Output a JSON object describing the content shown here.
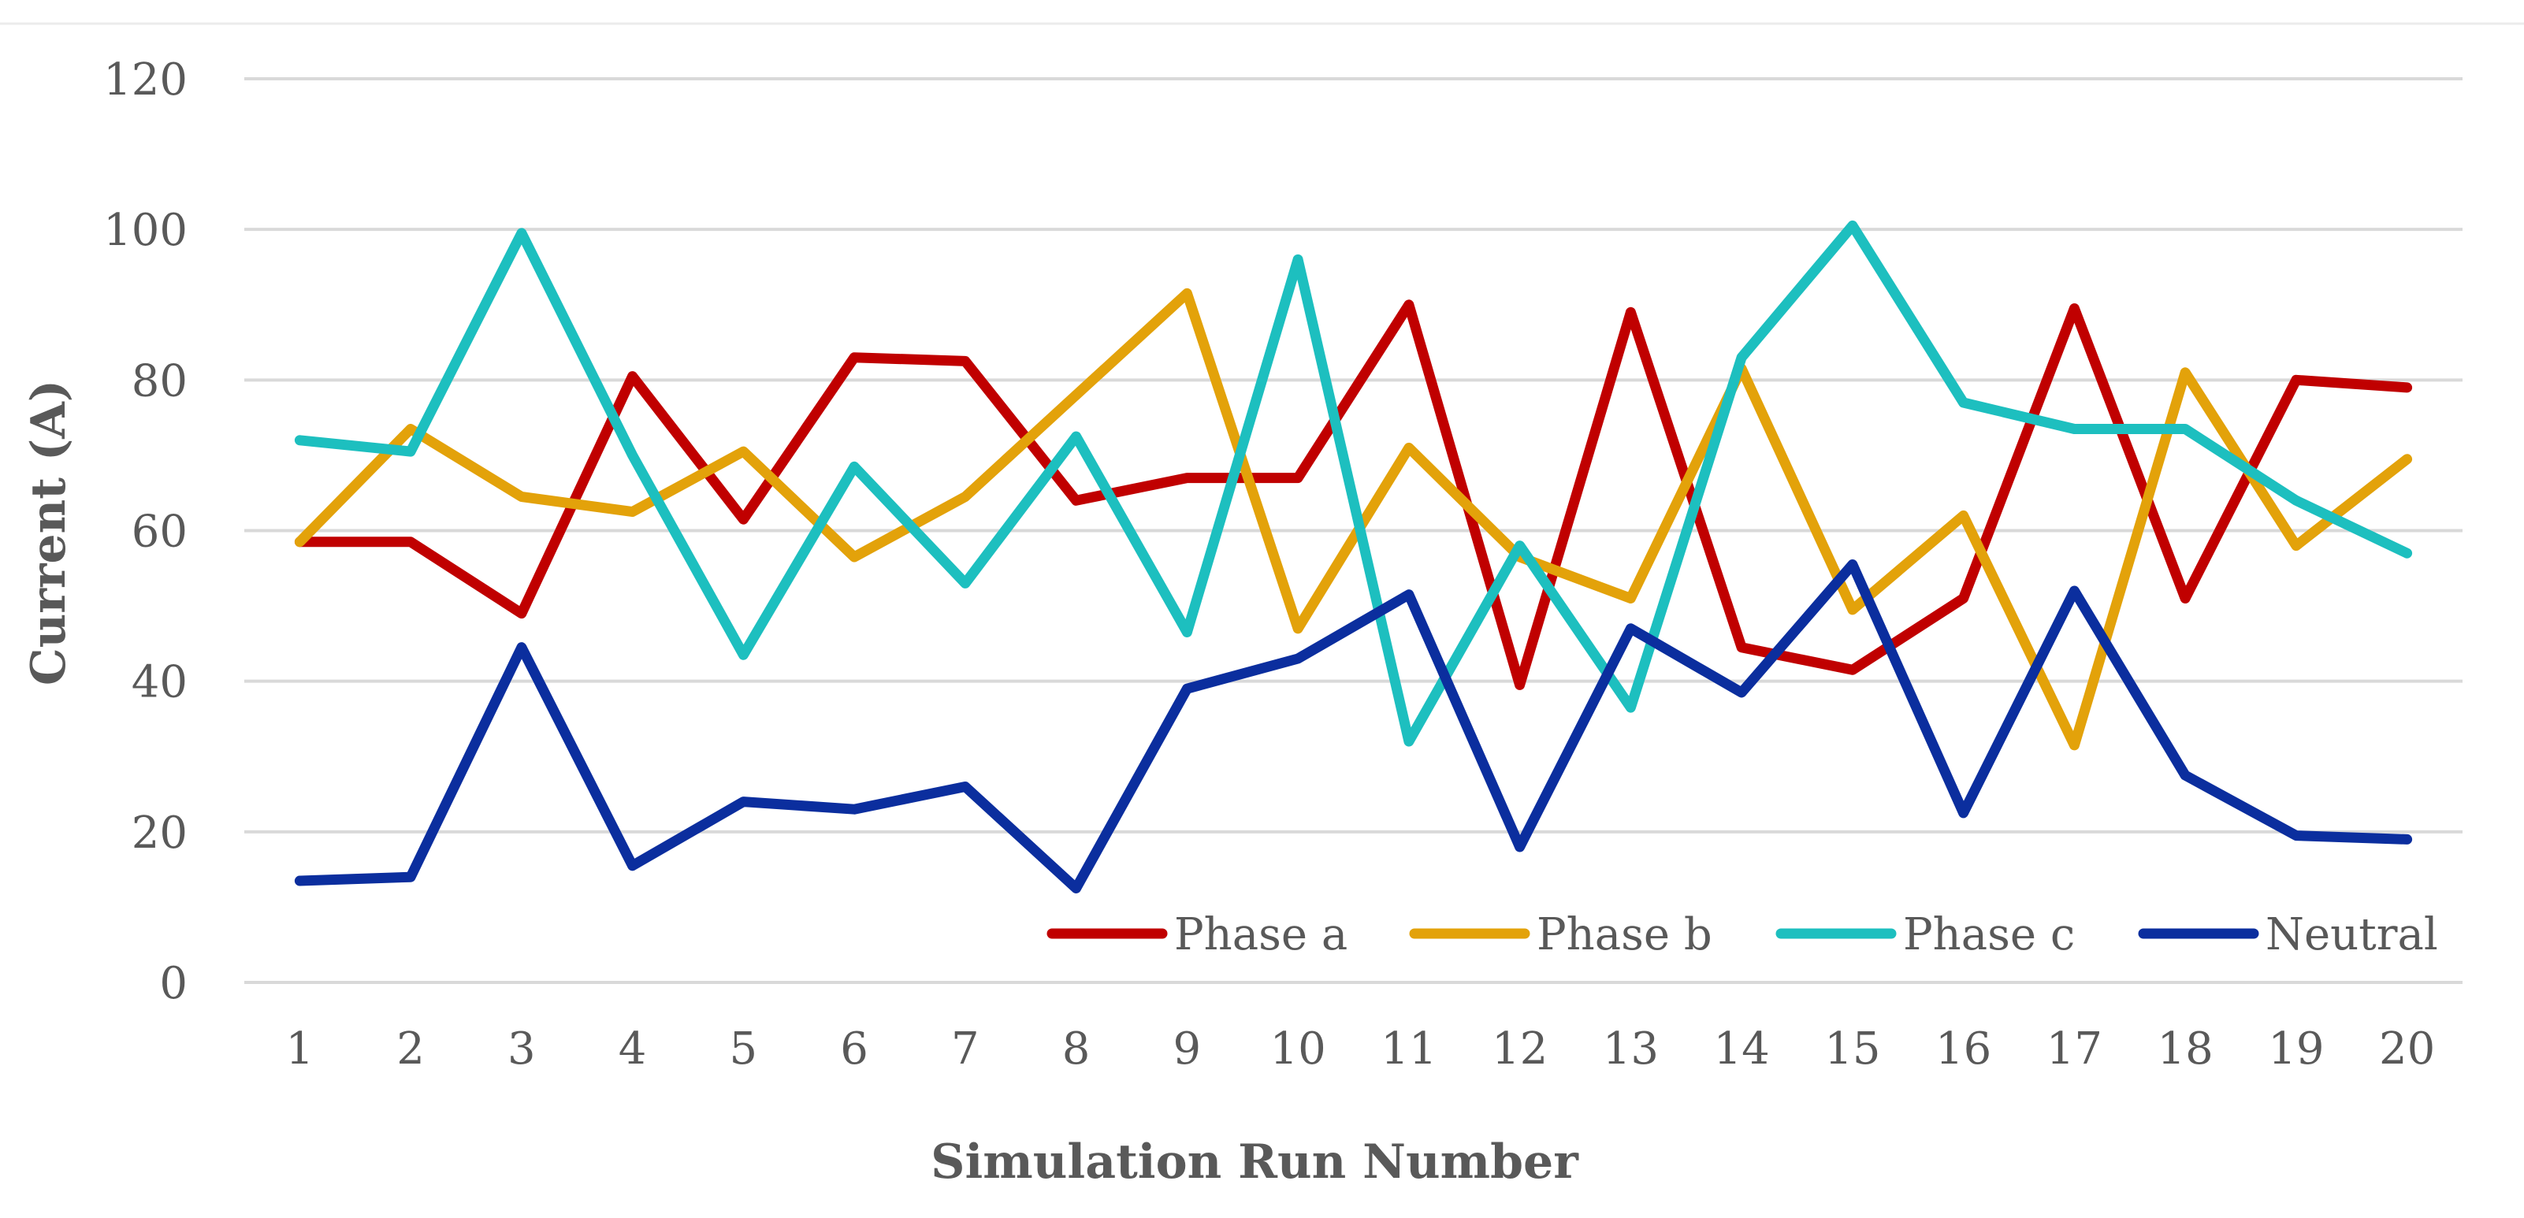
{
  "chart_data": {
    "type": "line",
    "title": "",
    "xlabel": "Simulation Run Number",
    "ylabel": "Current (A)",
    "categories": [
      "1",
      "2",
      "3",
      "4",
      "5",
      "6",
      "7",
      "8",
      "9",
      "10",
      "11",
      "12",
      "13",
      "14",
      "15",
      "16",
      "17",
      "18",
      "19",
      "20"
    ],
    "ylim": [
      0,
      120
    ],
    "yticks": [
      0,
      20,
      40,
      60,
      80,
      100,
      120
    ],
    "grid": true,
    "legend_position": "bottom-right inside",
    "series": [
      {
        "name": "Phase a",
        "color": "#C00000",
        "values": [
          58.5,
          58.5,
          49,
          80.5,
          61.5,
          83,
          82.5,
          64,
          67,
          67,
          90,
          39.5,
          89,
          44.5,
          41.5,
          51,
          89.5,
          51,
          80,
          79
        ]
      },
      {
        "name": "Phase b",
        "color": "#E3A20A",
        "values": [
          58.5,
          73.5,
          64.5,
          62.5,
          70.5,
          56.5,
          64.5,
          78,
          91.5,
          47,
          71,
          56.5,
          51,
          81.5,
          49.5,
          62,
          31.5,
          81,
          58,
          69.5
        ]
      },
      {
        "name": "Phase c",
        "color": "#1DBFBF",
        "values": [
          72,
          70.5,
          99.5,
          70,
          43.5,
          68.5,
          53,
          72.5,
          46.5,
          96,
          32,
          58,
          36.5,
          83,
          100.5,
          77,
          73.5,
          73.5,
          64,
          57
        ]
      },
      {
        "name": "Neutral",
        "color": "#0B2E9E",
        "values": [
          13.5,
          14,
          44.5,
          15.5,
          24,
          23,
          26,
          12.5,
          39,
          43,
          51.5,
          18,
          47,
          38.5,
          55.5,
          22.5,
          52,
          27.5,
          19.5,
          19
        ]
      }
    ]
  }
}
